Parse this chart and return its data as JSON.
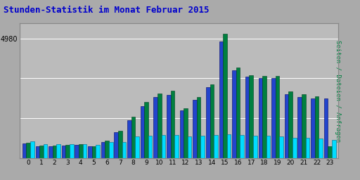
{
  "title": "Stunden-Statistik im Monat Februar 2015",
  "title_color": "#0000cc",
  "title_fontsize": 9,
  "hours": [
    0,
    1,
    2,
    3,
    4,
    5,
    6,
    7,
    8,
    9,
    10,
    11,
    12,
    13,
    14,
    15,
    16,
    17,
    18,
    19,
    20,
    21,
    22,
    23
  ],
  "anfragen": [
    700,
    580,
    580,
    600,
    600,
    560,
    680,
    680,
    900,
    950,
    970,
    960,
    900,
    940,
    980,
    1000,
    960,
    940,
    930,
    920,
    860,
    850,
    820,
    760
  ],
  "dateien": [
    620,
    490,
    510,
    525,
    550,
    490,
    690,
    1100,
    1580,
    2180,
    2540,
    2640,
    1980,
    2440,
    2940,
    4860,
    3650,
    3390,
    3340,
    3340,
    2660,
    2540,
    2490,
    2490
  ],
  "seiten": [
    660,
    530,
    540,
    555,
    590,
    510,
    730,
    1160,
    1720,
    2340,
    2680,
    2800,
    2080,
    2560,
    3060,
    5160,
    3780,
    3440,
    3420,
    3420,
    2780,
    2660,
    2570,
    500
  ],
  "color_seiten": "#008040",
  "color_dateien": "#2244cc",
  "color_anfragen": "#00ddff",
  "bg_color": "#aaaaaa",
  "plot_bg": "#bbbbbb",
  "ylabel_right": "Seiten / Dateien / Anfragen",
  "ylabel_right_color": "#008040",
  "ylim": [
    0,
    5600
  ],
  "bar_width": 0.3
}
